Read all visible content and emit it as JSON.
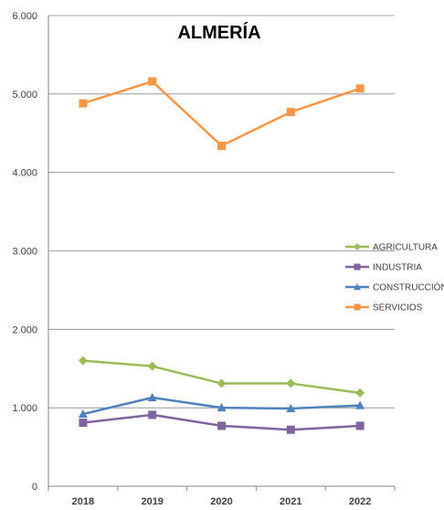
{
  "chart_data": {
    "type": "line",
    "title": "ALMERÍA",
    "xlabel": "",
    "ylabel": "",
    "categories": [
      "2018",
      "2019",
      "2020",
      "2021",
      "2022"
    ],
    "ylim": [
      0,
      6000
    ],
    "yticks": [
      "0",
      "1.000",
      "2.000",
      "3.000",
      "4.000",
      "5.000",
      "6.000"
    ],
    "ytick_values": [
      0,
      1000,
      2000,
      3000,
      4000,
      5000,
      6000
    ],
    "grid": true,
    "legend_position": "right",
    "series": [
      {
        "name": "AGRICULTURA",
        "values": [
          1600,
          1530,
          1310,
          1310,
          1190
        ],
        "color": "#9BBB59",
        "marker": "diamond"
      },
      {
        "name": "INDUSTRIA",
        "values": [
          810,
          910,
          770,
          720,
          770
        ],
        "color": "#8064A2",
        "marker": "square"
      },
      {
        "name": "CONSTRUCCIÓN",
        "values": [
          920,
          1130,
          1000,
          990,
          1030
        ],
        "color": "#4F81BD",
        "marker": "triangle"
      },
      {
        "name": "SERVICIOS",
        "values": [
          4880,
          5160,
          4340,
          4770,
          5070
        ],
        "color": "#F79646",
        "marker": "square"
      }
    ]
  }
}
